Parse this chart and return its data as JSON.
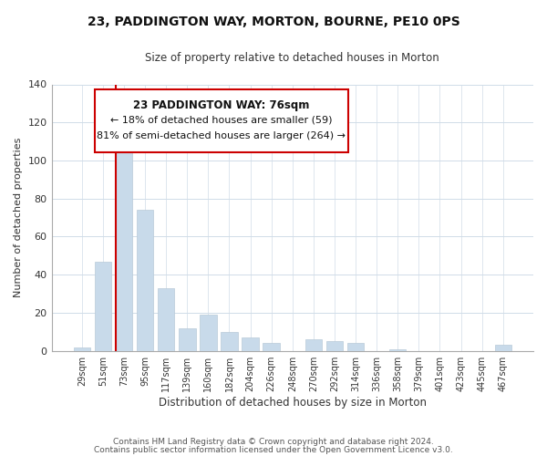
{
  "title": "23, PADDINGTON WAY, MORTON, BOURNE, PE10 0PS",
  "subtitle": "Size of property relative to detached houses in Morton",
  "xlabel": "Distribution of detached houses by size in Morton",
  "ylabel": "Number of detached properties",
  "bar_color": "#c8daea",
  "bar_edge_color": "#b8cad8",
  "grid_color": "#d0dce8",
  "background_color": "#ffffff",
  "categories": [
    "29sqm",
    "51sqm",
    "73sqm",
    "95sqm",
    "117sqm",
    "139sqm",
    "160sqm",
    "182sqm",
    "204sqm",
    "226sqm",
    "248sqm",
    "270sqm",
    "292sqm",
    "314sqm",
    "336sqm",
    "358sqm",
    "379sqm",
    "401sqm",
    "423sqm",
    "445sqm",
    "467sqm"
  ],
  "values": [
    2,
    47,
    107,
    74,
    33,
    12,
    19,
    10,
    7,
    4,
    0,
    6,
    5,
    4,
    0,
    1,
    0,
    0,
    0,
    0,
    3
  ],
  "ylim": [
    0,
    140
  ],
  "yticks": [
    0,
    20,
    40,
    60,
    80,
    100,
    120,
    140
  ],
  "marker_bar_index": 2,
  "marker_color": "#cc0000",
  "annotation_title": "23 PADDINGTON WAY: 76sqm",
  "annotation_line1": "← 18% of detached houses are smaller (59)",
  "annotation_line2": "81% of semi-detached houses are larger (264) →",
  "footer_line1": "Contains HM Land Registry data © Crown copyright and database right 2024.",
  "footer_line2": "Contains public sector information licensed under the Open Government Licence v3.0."
}
